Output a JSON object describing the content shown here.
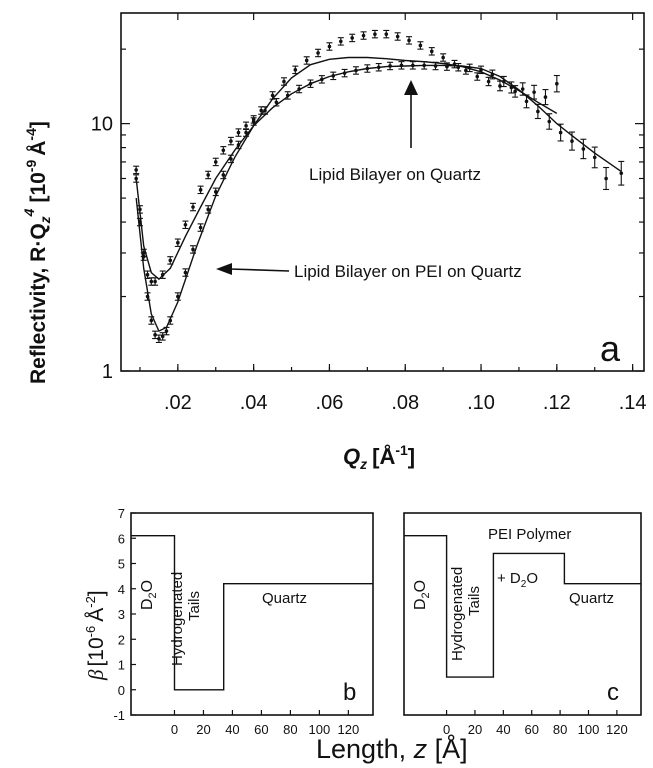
{
  "chart_data": [
    {
      "type": "scatter",
      "panel_label": "a",
      "xlabel_main": "Q",
      "xlabel_sub": "z",
      "xlabel_unit": "[Å",
      "xlabel_unit_exp": "-1",
      "xlabel_close": "]",
      "ylabel_main": "Reflectivity, R·Q",
      "ylabel_sub": "z",
      "ylabel_exp": "4",
      "ylabel_unit": "[10",
      "ylabel_unit_exp1": "-9",
      "ylabel_unit_mid": "Å",
      "ylabel_unit_exp2": "-4",
      "ylabel_close": "]",
      "xlim": [
        0.005,
        0.143
      ],
      "ylim": [
        1,
        28
      ],
      "yscale": "log",
      "x_ticks": [
        0.02,
        0.04,
        0.06,
        0.08,
        0.1,
        0.12,
        0.14
      ],
      "x_tick_labels": [
        ".02",
        ".04",
        ".06",
        ".08",
        ".10",
        ".12",
        ".14"
      ],
      "y_ticks": [
        1,
        10
      ],
      "y_tick_labels": [
        "1",
        "10"
      ],
      "annotations": [
        {
          "text": "Lipid Bilayer on Quartz",
          "arrow_to": [
            0.08,
            17.5
          ]
        },
        {
          "text": "Lipid Bilayer on PEI on Quartz",
          "arrow_to": [
            0.023,
            2.7
          ]
        }
      ],
      "series": [
        {
          "x": [
            0.009,
            0.01,
            0.011,
            0.012,
            0.013,
            0.014,
            0.015,
            0.016,
            0.017,
            0.018,
            0.02,
            0.022,
            0.024,
            0.026,
            0.028,
            0.03,
            0.032,
            0.034,
            0.036,
            0.038,
            0.04,
            0.042,
            0.045,
            0.048,
            0.051,
            0.054,
            0.057,
            0.06,
            0.063,
            0.066,
            0.069,
            0.072,
            0.075,
            0.078,
            0.081,
            0.084,
            0.087,
            0.09,
            0.093,
            0.096,
            0.099,
            0.102,
            0.105,
            0.108,
            0.111,
            0.114,
            0.117,
            0.12
          ],
          "y": [
            6.0,
            4.5,
            3.0,
            2.0,
            1.6,
            1.4,
            1.35,
            1.38,
            1.45,
            1.6,
            2.0,
            2.5,
            3.1,
            3.8,
            4.5,
            5.3,
            6.2,
            7.2,
            8.2,
            9.2,
            10.2,
            11.3,
            13.0,
            14.8,
            16.5,
            18.0,
            19.3,
            20.5,
            21.5,
            22.2,
            22.7,
            23.0,
            23.0,
            22.5,
            21.7,
            20.7,
            19.6,
            18.5,
            17.4,
            16.4,
            15.5,
            14.8,
            14.2,
            14.0,
            13.8,
            13.4,
            12.8,
            14.5
          ]
        },
        {
          "x": [
            0.009,
            0.01,
            0.011,
            0.012,
            0.013,
            0.014,
            0.016,
            0.018,
            0.02,
            0.022,
            0.024,
            0.026,
            0.028,
            0.03,
            0.032,
            0.034,
            0.036,
            0.038,
            0.04,
            0.043,
            0.046,
            0.049,
            0.052,
            0.055,
            0.058,
            0.061,
            0.064,
            0.067,
            0.07,
            0.073,
            0.076,
            0.079,
            0.082,
            0.085,
            0.088,
            0.091,
            0.094,
            0.097,
            0.1,
            0.103,
            0.106,
            0.109,
            0.112,
            0.115,
            0.118,
            0.121,
            0.124,
            0.127,
            0.13,
            0.133,
            0.137
          ],
          "y": [
            6.5,
            4.0,
            2.9,
            2.45,
            2.3,
            2.3,
            2.45,
            2.8,
            3.3,
            3.9,
            4.6,
            5.4,
            6.2,
            7.0,
            7.8,
            8.5,
            9.2,
            9.8,
            10.4,
            11.3,
            12.2,
            13.0,
            13.8,
            14.5,
            15.1,
            15.6,
            16.0,
            16.4,
            16.7,
            16.9,
            17.1,
            17.2,
            17.2,
            17.2,
            17.1,
            17.0,
            16.9,
            16.8,
            16.5,
            15.8,
            14.8,
            13.5,
            12.3,
            11.2,
            10.2,
            9.2,
            8.5,
            7.9,
            7.3,
            6.0,
            6.3
          ]
        }
      ],
      "fit_lines": [
        {
          "x": [
            0.009,
            0.011,
            0.013,
            0.015,
            0.017,
            0.02,
            0.025,
            0.03,
            0.035,
            0.04,
            0.045,
            0.05,
            0.055,
            0.06,
            0.065,
            0.07,
            0.075,
            0.08,
            0.085,
            0.09,
            0.095,
            0.1,
            0.105,
            0.11,
            0.115,
            0.12
          ],
          "y": [
            5.0,
            2.6,
            1.7,
            1.45,
            1.5,
            1.9,
            3.2,
            5.1,
            7.3,
            9.8,
            12.6,
            15.3,
            17.3,
            18.2,
            18.5,
            18.5,
            18.3,
            18.0,
            17.8,
            17.5,
            17.0,
            16.2,
            15.0,
            13.6,
            12.2,
            11.0
          ]
        },
        {
          "x": [
            0.009,
            0.011,
            0.013,
            0.015,
            0.018,
            0.022,
            0.026,
            0.03,
            0.035,
            0.04,
            0.045,
            0.05,
            0.055,
            0.06,
            0.065,
            0.07,
            0.075,
            0.08,
            0.085,
            0.09,
            0.095,
            0.1,
            0.105,
            0.11,
            0.115,
            0.12,
            0.125,
            0.13,
            0.137
          ],
          "y": [
            6.0,
            3.2,
            2.5,
            2.35,
            2.6,
            3.5,
            4.6,
            6.0,
            7.8,
            9.8,
            11.6,
            13.2,
            14.5,
            15.5,
            16.2,
            16.7,
            17.0,
            17.1,
            17.2,
            17.2,
            17.1,
            16.7,
            15.5,
            13.7,
            11.8,
            10.0,
            8.7,
            7.6,
            6.4
          ]
        }
      ]
    },
    {
      "type": "line",
      "panel_label": "b",
      "ylabel_main": "β",
      "ylabel_unit": "[10",
      "ylabel_unit_exp1": "-6",
      "ylabel_unit_mid": "Å",
      "ylabel_unit_exp2": "-2",
      "ylabel_close": "]",
      "xlim": [
        -30,
        137
      ],
      "ylim": [
        -1,
        7
      ],
      "y_ticks": [
        -1,
        0,
        1,
        2,
        3,
        4,
        5,
        6,
        7
      ],
      "y_tick_labels": [
        "-1",
        "0",
        "1",
        "2",
        "3",
        "4",
        "5",
        "6",
        "7"
      ],
      "x_ticks": [
        0,
        20,
        40,
        60,
        80,
        100,
        120
      ],
      "x_tick_labels": [
        "0",
        "20",
        "40",
        "60",
        "80",
        "100",
        "120"
      ],
      "step_profile": {
        "x": [
          -30,
          0,
          0,
          34,
          34,
          137
        ],
        "y": [
          6.1,
          6.1,
          0,
          0,
          4.2,
          4.2
        ]
      },
      "region_labels": {
        "d2o": "D",
        "d2o_sub": "2",
        "d2o_end": "O",
        "tails_line1": "Hydrogenated",
        "tails_line2": "Tails",
        "quartz": "Quartz"
      }
    },
    {
      "type": "line",
      "panel_label": "c",
      "xlim": [
        -30,
        137
      ],
      "ylim": [
        -1,
        7
      ],
      "x_ticks": [
        0,
        20,
        40,
        60,
        80,
        100,
        120
      ],
      "x_tick_labels": [
        "0",
        "20",
        "40",
        "60",
        "80",
        "100",
        "120"
      ],
      "step_profile": {
        "x": [
          -30,
          0,
          0,
          33,
          33,
          83,
          83,
          137
        ],
        "y": [
          6.1,
          6.1,
          0.5,
          0.5,
          5.4,
          5.4,
          4.2,
          4.2
        ]
      },
      "region_labels": {
        "d2o": "D",
        "d2o_sub": "2",
        "d2o_end": "O",
        "tails_line1": "Hydrogenated",
        "tails_line2": "Tails",
        "pei": "PEI Polymer",
        "pei_d2o": "+ D",
        "pei_d2o_sub": "2",
        "pei_d2o_end": "O",
        "quartz": "Quartz"
      }
    }
  ],
  "shared_xlabel": {
    "main": "Length, ",
    "var": "z",
    "unit": " [Å]"
  }
}
